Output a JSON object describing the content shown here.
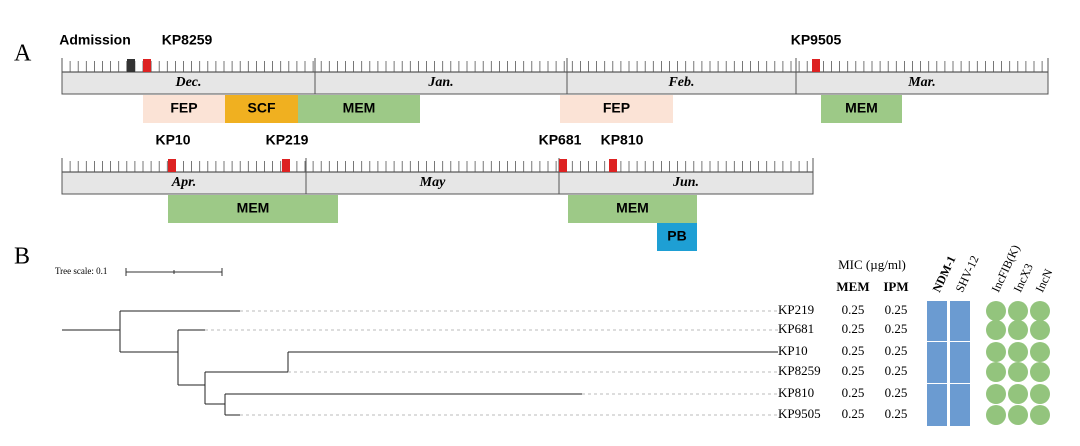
{
  "panel_a": {
    "label": "A",
    "rows": [
      {
        "months": [
          "Dec.",
          "Jan.",
          "Feb.",
          "Mar."
        ],
        "events": [
          "Admission",
          "KP8259",
          "KP9505"
        ],
        "treatments": [
          "FEP",
          "SCF",
          "MEM",
          "FEP",
          "MEM"
        ]
      },
      {
        "months": [
          "Apr.",
          "May",
          "Jun."
        ],
        "events": [
          "KP10",
          "KP219",
          "KP681",
          "KP810"
        ],
        "treatments": [
          "MEM",
          "MEM",
          "PB"
        ]
      }
    ]
  },
  "panel_b": {
    "label": "B",
    "tree_scale": "Tree scale: 0.1",
    "mic_title": "MIC (µg/ml)",
    "mic_columns": [
      "MEM",
      "IPM"
    ],
    "genes": [
      "NDM-1",
      "SHV-12",
      "IncFIB(K)",
      "IncX3",
      "IncN"
    ],
    "rows": [
      {
        "name": "KP219",
        "mic": [
          0.25,
          0.25
        ]
      },
      {
        "name": "KP681",
        "mic": [
          0.25,
          0.25
        ]
      },
      {
        "name": "KP10",
        "mic": [
          0.25,
          0.25
        ]
      },
      {
        "name": "KP8259",
        "mic": [
          0.25,
          0.25
        ]
      },
      {
        "name": "KP810",
        "mic": [
          0.25,
          0.25
        ]
      },
      {
        "name": "KP9505",
        "mic": [
          0.25,
          0.25
        ]
      }
    ]
  }
}
